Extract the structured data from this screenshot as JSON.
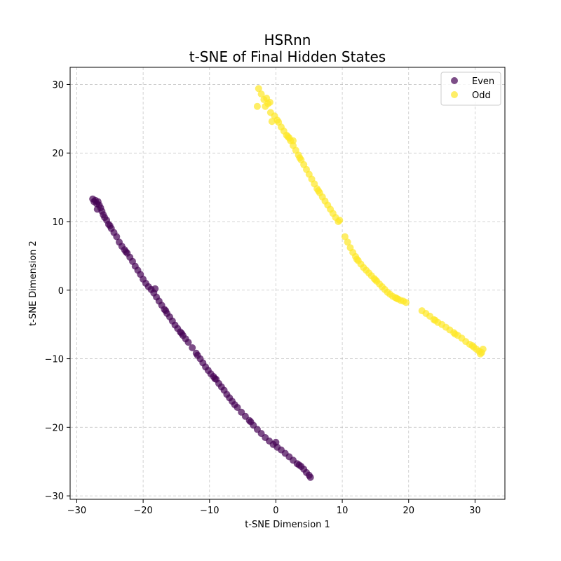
{
  "chart_data": {
    "type": "scatter",
    "title": "HSRnn",
    "subtitle": "t-SNE of Final Hidden States",
    "xlabel": "t-SNE Dimension 1",
    "ylabel": "t-SNE Dimension 2",
    "xlim": [
      -31,
      34.5
    ],
    "ylim": [
      -30.5,
      32.5
    ],
    "xticks": [
      -30,
      -20,
      -10,
      0,
      10,
      20,
      30
    ],
    "yticks": [
      -30,
      -20,
      -10,
      0,
      10,
      20,
      30
    ],
    "grid": true,
    "legend_position": "top-right",
    "series": [
      {
        "name": "Even",
        "color": "#440154",
        "points": [
          [
            -27.6,
            13.3
          ],
          [
            -27.4,
            12.9
          ],
          [
            -27.2,
            13.1
          ],
          [
            -27.0,
            12.6
          ],
          [
            -26.8,
            12.9
          ],
          [
            -26.6,
            12.4
          ],
          [
            -26.4,
            12.0
          ],
          [
            -26.2,
            11.5
          ],
          [
            -26.0,
            11.0
          ],
          [
            -25.8,
            10.6
          ],
          [
            -25.5,
            10.2
          ],
          [
            -25.2,
            9.6
          ],
          [
            -24.8,
            9.0
          ],
          [
            -24.4,
            8.4
          ],
          [
            -24.0,
            7.8
          ],
          [
            -23.6,
            7.0
          ],
          [
            -23.2,
            6.4
          ],
          [
            -22.8,
            5.9
          ],
          [
            -22.4,
            5.4
          ],
          [
            -22.0,
            4.8
          ],
          [
            -21.6,
            4.2
          ],
          [
            -21.2,
            3.5
          ],
          [
            -20.8,
            2.9
          ],
          [
            -20.4,
            2.3
          ],
          [
            -20.0,
            1.6
          ],
          [
            -19.6,
            1.0
          ],
          [
            -19.2,
            0.5
          ],
          [
            -18.8,
            0.1
          ],
          [
            -18.4,
            -0.4
          ],
          [
            -18.0,
            -1.0
          ],
          [
            -17.6,
            -1.6
          ],
          [
            -17.2,
            -2.2
          ],
          [
            -16.8,
            -2.8
          ],
          [
            -16.4,
            -3.4
          ],
          [
            -16.0,
            -3.9
          ],
          [
            -15.6,
            -4.5
          ],
          [
            -15.2,
            -5.1
          ],
          [
            -14.8,
            -5.6
          ],
          [
            -14.4,
            -6.1
          ],
          [
            -14.0,
            -6.6
          ],
          [
            -13.6,
            -7.1
          ],
          [
            -13.2,
            -7.6
          ],
          [
            -12.6,
            -8.4
          ],
          [
            -12.0,
            -9.2
          ],
          [
            -11.4,
            -10.0
          ],
          [
            -11.0,
            -10.6
          ],
          [
            -10.6,
            -11.2
          ],
          [
            -10.2,
            -11.7
          ],
          [
            -9.8,
            -12.2
          ],
          [
            -9.4,
            -12.6
          ],
          [
            -9.0,
            -13.0
          ],
          [
            -8.6,
            -13.6
          ],
          [
            -8.2,
            -14.1
          ],
          [
            -7.8,
            -14.6
          ],
          [
            -7.4,
            -15.2
          ],
          [
            -7.0,
            -15.7
          ],
          [
            -6.6,
            -16.2
          ],
          [
            -6.2,
            -16.7
          ],
          [
            -5.8,
            -17.1
          ],
          [
            -5.2,
            -17.8
          ],
          [
            -4.6,
            -18.4
          ],
          [
            -4.0,
            -19.0
          ],
          [
            -3.4,
            -19.7
          ],
          [
            -2.8,
            -20.3
          ],
          [
            -2.2,
            -20.9
          ],
          [
            -1.6,
            -21.5
          ],
          [
            -1.0,
            -22.0
          ],
          [
            -0.4,
            -22.5
          ],
          [
            0.2,
            -22.9
          ],
          [
            0.8,
            -23.3
          ],
          [
            1.4,
            -23.8
          ],
          [
            2.0,
            -24.3
          ],
          [
            2.6,
            -24.8
          ],
          [
            3.2,
            -25.3
          ],
          [
            3.8,
            -25.7
          ],
          [
            4.2,
            -26.1
          ],
          [
            4.6,
            -26.6
          ],
          [
            5.0,
            -27.0
          ],
          [
            5.2,
            -27.3
          ],
          [
            -11.8,
            -9.5
          ],
          [
            -18.2,
            0.2
          ],
          [
            -22.6,
            5.6
          ],
          [
            -25.0,
            9.4
          ],
          [
            -26.9,
            11.8
          ],
          [
            -16.6,
            -3.0
          ],
          [
            -14.2,
            -6.3
          ],
          [
            -9.2,
            -12.9
          ],
          [
            -3.8,
            -19.2
          ],
          [
            0.0,
            -22.2
          ],
          [
            3.5,
            -25.5
          ]
        ]
      },
      {
        "name": "Odd",
        "color": "#fde725",
        "points": [
          [
            -2.6,
            29.4
          ],
          [
            -2.2,
            28.6
          ],
          [
            -1.8,
            27.8
          ],
          [
            -1.6,
            26.8
          ],
          [
            -1.2,
            27.2
          ],
          [
            -2.8,
            26.8
          ],
          [
            -0.8,
            25.9
          ],
          [
            -0.6,
            24.6
          ],
          [
            -0.2,
            25.4
          ],
          [
            0.4,
            24.5
          ],
          [
            0.8,
            23.8
          ],
          [
            1.2,
            23.2
          ],
          [
            1.8,
            22.4
          ],
          [
            2.2,
            21.8
          ],
          [
            2.6,
            21.1
          ],
          [
            3.0,
            20.4
          ],
          [
            3.4,
            19.7
          ],
          [
            3.8,
            19.0
          ],
          [
            4.2,
            18.3
          ],
          [
            4.6,
            17.6
          ],
          [
            5.0,
            16.9
          ],
          [
            5.4,
            16.2
          ],
          [
            5.8,
            15.5
          ],
          [
            6.2,
            14.8
          ],
          [
            6.6,
            14.2
          ],
          [
            7.0,
            13.6
          ],
          [
            7.4,
            13.0
          ],
          [
            7.8,
            12.4
          ],
          [
            8.2,
            11.8
          ],
          [
            8.6,
            11.2
          ],
          [
            9.0,
            10.6
          ],
          [
            9.4,
            10.0
          ],
          [
            2.6,
            21.8
          ],
          [
            2.0,
            22.2
          ],
          [
            10.4,
            7.8
          ],
          [
            10.8,
            7.0
          ],
          [
            11.2,
            6.2
          ],
          [
            11.6,
            5.5
          ],
          [
            12.0,
            4.9
          ],
          [
            12.4,
            4.3
          ],
          [
            12.8,
            3.8
          ],
          [
            13.2,
            3.3
          ],
          [
            13.6,
            2.9
          ],
          [
            14.0,
            2.5
          ],
          [
            14.4,
            2.1
          ],
          [
            14.8,
            1.7
          ],
          [
            15.2,
            1.3
          ],
          [
            15.6,
            0.9
          ],
          [
            16.0,
            0.5
          ],
          [
            16.4,
            0.1
          ],
          [
            16.8,
            -0.3
          ],
          [
            17.2,
            -0.6
          ],
          [
            17.6,
            -0.9
          ],
          [
            18.0,
            -1.1
          ],
          [
            18.4,
            -1.3
          ],
          [
            18.8,
            -1.5
          ],
          [
            19.2,
            -1.6
          ],
          [
            19.6,
            -1.8
          ],
          [
            22.0,
            -3.0
          ],
          [
            22.6,
            -3.4
          ],
          [
            23.2,
            -3.8
          ],
          [
            23.8,
            -4.3
          ],
          [
            24.4,
            -4.7
          ],
          [
            25.0,
            -5.0
          ],
          [
            25.6,
            -5.4
          ],
          [
            26.2,
            -5.8
          ],
          [
            26.8,
            -6.2
          ],
          [
            27.4,
            -6.6
          ],
          [
            28.0,
            -7.0
          ],
          [
            28.6,
            -7.5
          ],
          [
            29.2,
            -7.9
          ],
          [
            29.8,
            -8.3
          ],
          [
            30.2,
            -8.6
          ],
          [
            30.6,
            -8.9
          ],
          [
            31.0,
            -9.1
          ],
          [
            31.2,
            -8.6
          ],
          [
            30.8,
            -9.3
          ],
          [
            12.2,
            4.5
          ],
          [
            15.0,
            1.5
          ],
          [
            18.2,
            -1.2
          ],
          [
            9.6,
            10.2
          ],
          [
            6.4,
            14.5
          ],
          [
            3.6,
            19.3
          ],
          [
            0.2,
            24.8
          ],
          [
            -1.4,
            28.0
          ],
          [
            24.0,
            -4.4
          ],
          [
            27.0,
            -6.4
          ],
          [
            29.6,
            -8.1
          ],
          [
            -0.9,
            27.4
          ],
          [
            1.6,
            22.6
          ]
        ]
      }
    ]
  }
}
